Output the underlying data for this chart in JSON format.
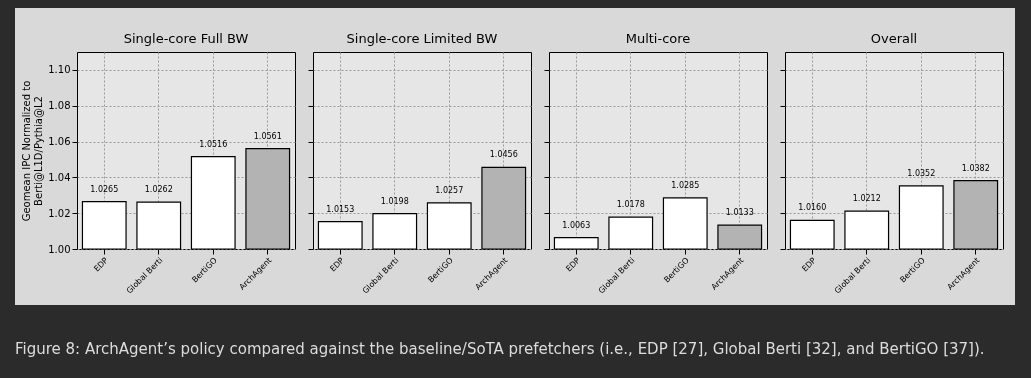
{
  "chart_data": [
    {
      "type": "bar",
      "title": "Single-core Full BW",
      "ylabel": "Geomean IPC Normalized to\nBerti@L1D/Pythia@L2",
      "categories": [
        "EDP",
        "Global Berti",
        "BertiGO",
        "ArchAgent"
      ],
      "values": [
        1.0265,
        1.0262,
        1.0516,
        1.0561
      ],
      "value_labels": [
        "1.0265",
        "1.0262",
        "1.0516",
        "1.0561"
      ],
      "colors": [
        "#ffffff",
        "#ffffff",
        "#ffffff",
        "#b3b3b3"
      ],
      "ylim": [
        1.0,
        1.11
      ],
      "yticks": [
        {
          "value": 1.0,
          "label": "1.00"
        },
        1.02,
        1.04,
        1.06,
        1.08,
        {
          "value": 1.1,
          "label": "1.10"
        }
      ],
      "grid": true,
      "annotations": [
        "Figure 8: ArchAgent’s policy compared against the baseline/SoTA prefetchers (i.e., EDP [27], Global Berti  [32], and BertiGO  [37])."
      ]
    },
    {
      "type": "bar",
      "title": "Single-core Limited BW",
      "categories": [
        "EDP",
        "Global Berti",
        "BertiGO",
        "ArchAgent"
      ],
      "values": [
        1.0153,
        1.0198,
        1.0257,
        1.0456
      ],
      "value_labels": [
        "1.0153",
        "1.0198",
        "1.0257",
        "1.0456"
      ],
      "colors": [
        "#ffffff",
        "#ffffff",
        "#ffffff",
        "#b3b3b3"
      ],
      "ylim": [
        1.0,
        1.11
      ],
      "yticks": [
        1.0,
        1.02,
        1.04,
        1.06,
        1.08,
        1.1
      ],
      "grid": true,
      "tick_labels": "x"
    },
    {
      "type": "bar",
      "title": "Multi-core",
      "categories": [
        "EDP",
        "Global Berti",
        "BertiGO",
        "ArchAgent"
      ],
      "values": [
        1.0063,
        1.0178,
        1.0285,
        1.0133
      ],
      "value_labels": [
        "1.0063",
        "1.0178",
        "1.0285",
        "1.0133"
      ],
      "colors": [
        "#ffffff",
        "#ffffff",
        "#ffffff",
        "#b3b3b3"
      ],
      "ylim": [
        1.0,
        1.11
      ],
      "yticks": [
        1.0,
        1.02,
        1.04,
        1.06,
        1.08,
        1.1
      ],
      "grid": true,
      "tick_labels": "x"
    },
    {
      "type": "bar",
      "title": "Overall",
      "categories": [
        "EDP",
        "Global Berti",
        "BertiGO",
        "ArchAgent"
      ],
      "values": [
        1.016,
        1.0212,
        1.0352,
        1.0382
      ],
      "value_labels": [
        "1.0160",
        "1.0212",
        "1.0352",
        "1.0382"
      ],
      "colors": [
        "#ffffff",
        "#ffffff",
        "#ffffff",
        "#b3b3b3"
      ],
      "ylim": [
        1.0,
        1.11
      ],
      "yticks": [
        1.0,
        1.02,
        1.04,
        1.06,
        1.08,
        1.1
      ],
      "grid": true,
      "tick_labels": "x"
    }
  ]
}
